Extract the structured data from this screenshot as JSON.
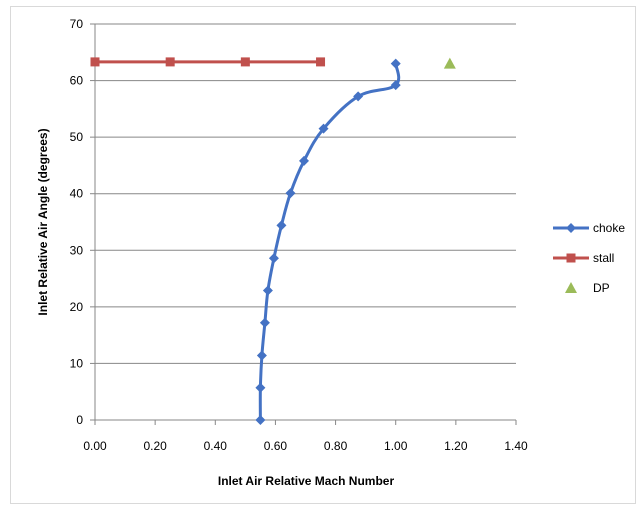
{
  "chart_data": {
    "type": "scatter",
    "xlabel": "Inlet Air Relative Mach Number",
    "ylabel": "Inlet Relative Air Angle (degrees)",
    "xlim": [
      0,
      1.4
    ],
    "ylim": [
      0,
      70
    ],
    "x_ticks": [
      "0.00",
      "0.20",
      "0.40",
      "0.60",
      "0.80",
      "1.00",
      "1.20",
      "1.40"
    ],
    "y_ticks": [
      "0",
      "10",
      "20",
      "30",
      "40",
      "50",
      "60",
      "70"
    ],
    "grid": "horizontal",
    "legend_position": "right",
    "series": [
      {
        "name": "choke",
        "color": "#4472C4",
        "marker": "diamond",
        "line": "smooth",
        "x": [
          0.55,
          0.55,
          0.555,
          0.565,
          0.575,
          0.595,
          0.62,
          0.65,
          0.695,
          0.76,
          0.875,
          1.0,
          1.0
        ],
        "y": [
          0,
          5.7,
          11.4,
          17.2,
          22.9,
          28.6,
          34.4,
          40.1,
          45.8,
          51.5,
          57.2,
          59.2,
          63.0
        ]
      },
      {
        "name": "stall",
        "color": "#C0504D",
        "marker": "square",
        "line": "straight",
        "x": [
          0.0,
          0.25,
          0.5,
          0.75
        ],
        "y": [
          63.3,
          63.3,
          63.3,
          63.3
        ]
      },
      {
        "name": "DP",
        "color": "#9BBB59",
        "marker": "triangle",
        "line": "none",
        "x": [
          1.18
        ],
        "y": [
          63.0
        ]
      }
    ]
  }
}
